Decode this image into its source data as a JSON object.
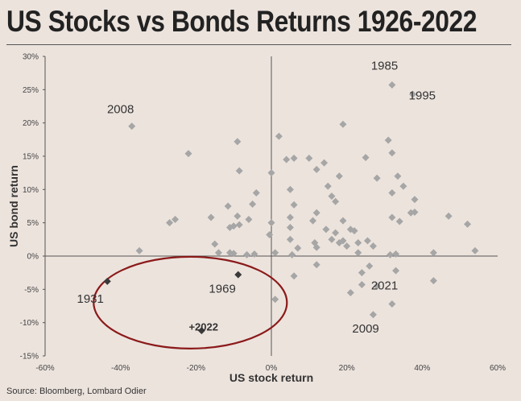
{
  "title": "US Stocks vs Bonds Returns 1926-2022",
  "source": "Source: Bloomberg, Lombard Odier",
  "colors": {
    "background": "#ece3dd",
    "point": "#a6a6a6",
    "highlight_point": "#3a3a3a",
    "ellipse": "#8b1a1a",
    "axis": "#555555"
  },
  "chart_data": {
    "type": "scatter",
    "title": "US Stocks vs Bonds Returns 1926-2022",
    "xlabel": "US stock return",
    "ylabel": "US bond return",
    "xlim": [
      -0.6,
      0.6
    ],
    "ylim": [
      -0.15,
      0.3
    ],
    "x_ticks": [
      {
        "value": -0.6,
        "label": "-60%"
      },
      {
        "value": -0.4,
        "label": "-40%"
      },
      {
        "value": -0.2,
        "label": "-20%"
      },
      {
        "value": 0.0,
        "label": "0%"
      },
      {
        "value": 0.2,
        "label": "20%"
      },
      {
        "value": 0.4,
        "label": "40%"
      },
      {
        "value": 0.6,
        "label": "60%"
      }
    ],
    "y_ticks": [
      {
        "value": -0.15,
        "label": "-15%"
      },
      {
        "value": -0.1,
        "label": "-10%"
      },
      {
        "value": -0.05,
        "label": "-5%"
      },
      {
        "value": 0.0,
        "label": "0%"
      },
      {
        "value": 0.05,
        "label": "5%"
      },
      {
        "value": 0.1,
        "label": "10%"
      },
      {
        "value": 0.15,
        "label": "15%"
      },
      {
        "value": 0.2,
        "label": "20%"
      },
      {
        "value": 0.25,
        "label": "25%"
      },
      {
        "value": 0.3,
        "label": "30%"
      }
    ],
    "points": [
      [
        -0.37,
        0.195
      ],
      [
        0.32,
        0.257
      ],
      [
        0.375,
        0.243
      ],
      [
        0.19,
        0.198
      ],
      [
        -0.22,
        0.154
      ],
      [
        -0.09,
        0.172
      ],
      [
        0.02,
        0.18
      ],
      [
        0.31,
        0.174
      ],
      [
        0.32,
        0.155
      ],
      [
        0.25,
        0.148
      ],
      [
        0.04,
        0.145
      ],
      [
        0.06,
        0.147
      ],
      [
        0.1,
        0.147
      ],
      [
        0.14,
        0.14
      ],
      [
        0.0,
        0.125
      ],
      [
        -0.085,
        0.128
      ],
      [
        0.12,
        0.13
      ],
      [
        0.18,
        0.12
      ],
      [
        0.28,
        0.117
      ],
      [
        0.335,
        0.12
      ],
      [
        0.35,
        0.105
      ],
      [
        0.32,
        0.095
      ],
      [
        0.15,
        0.105
      ],
      [
        0.05,
        0.1
      ],
      [
        -0.04,
        0.095
      ],
      [
        0.16,
        0.09
      ],
      [
        -0.16,
        0.058
      ],
      [
        -0.115,
        0.075
      ],
      [
        -0.09,
        0.06
      ],
      [
        -0.1,
        0.045
      ],
      [
        -0.085,
        0.047
      ],
      [
        -0.06,
        0.055
      ],
      [
        0.06,
        0.077
      ],
      [
        -0.05,
        0.078
      ],
      [
        0.17,
        0.082
      ],
      [
        0.38,
        0.085
      ],
      [
        0.05,
        0.058
      ],
      [
        0.12,
        0.065
      ],
      [
        0.11,
        0.053
      ],
      [
        0.19,
        0.053
      ],
      [
        0.32,
        0.058
      ],
      [
        0.34,
        0.052
      ],
      [
        0.37,
        0.065
      ],
      [
        0.38,
        0.066
      ],
      [
        0.47,
        0.06
      ],
      [
        0.52,
        0.048
      ],
      [
        -0.255,
        0.055
      ],
      [
        -0.27,
        0.05
      ],
      [
        -0.11,
        0.043
      ],
      [
        0.0,
        0.05
      ],
      [
        0.05,
        0.043
      ],
      [
        0.145,
        0.04
      ],
      [
        0.17,
        0.035
      ],
      [
        0.21,
        0.04
      ],
      [
        0.22,
        0.038
      ],
      [
        0.16,
        0.025
      ],
      [
        0.19,
        0.023
      ],
      [
        0.18,
        0.02
      ],
      [
        -0.005,
        0.032
      ],
      [
        0.05,
        0.025
      ],
      [
        0.115,
        0.02
      ],
      [
        0.12,
        0.013
      ],
      [
        0.07,
        0.012
      ],
      [
        0.2,
        0.015
      ],
      [
        0.23,
        0.02
      ],
      [
        0.255,
        0.023
      ],
      [
        0.27,
        0.015
      ],
      [
        -0.35,
        0.008
      ],
      [
        -0.15,
        0.018
      ],
      [
        -0.14,
        0.005
      ],
      [
        -0.11,
        0.005
      ],
      [
        -0.1,
        0.004
      ],
      [
        -0.045,
        0.003
      ],
      [
        0.01,
        0.005
      ],
      [
        0.055,
        0.002
      ],
      [
        0.23,
        0.005
      ],
      [
        0.33,
        0.003
      ],
      [
        0.315,
        0.002
      ],
      [
        0.43,
        0.005
      ],
      [
        0.54,
        0.008
      ],
      [
        -0.065,
        0.002
      ],
      [
        0.12,
        -0.013
      ],
      [
        0.06,
        -0.03
      ],
      [
        0.24,
        -0.025
      ],
      [
        0.26,
        -0.015
      ],
      [
        0.33,
        -0.022
      ],
      [
        0.24,
        -0.043
      ],
      [
        0.28,
        -0.045
      ],
      [
        0.43,
        -0.037
      ],
      [
        0.27,
        -0.088
      ],
      [
        0.32,
        -0.072
      ],
      [
        0.21,
        -0.055
      ],
      [
        0.01,
        -0.065
      ]
    ],
    "highlighted_points": [
      {
        "x": -0.435,
        "y": -0.038,
        "label": "1931"
      },
      {
        "x": -0.088,
        "y": -0.028,
        "label": "1969"
      },
      {
        "x": -0.185,
        "y": -0.112,
        "label": "2022"
      }
    ],
    "annotations": [
      {
        "text": "2008",
        "x": -0.4,
        "y": 0.215
      },
      {
        "text": "1985",
        "x": 0.3,
        "y": 0.28
      },
      {
        "text": "1995",
        "x": 0.4,
        "y": 0.235
      },
      {
        "text": "1931",
        "x": -0.48,
        "y": -0.07
      },
      {
        "text": "1969",
        "x": -0.13,
        "y": -0.055
      },
      {
        "text": "2021",
        "x": 0.3,
        "y": -0.05
      },
      {
        "text": "2009",
        "x": 0.25,
        "y": -0.115
      },
      {
        "text": "+2022",
        "x": -0.18,
        "y": -0.112,
        "bold": true
      }
    ],
    "grid": false,
    "legend": "none"
  }
}
